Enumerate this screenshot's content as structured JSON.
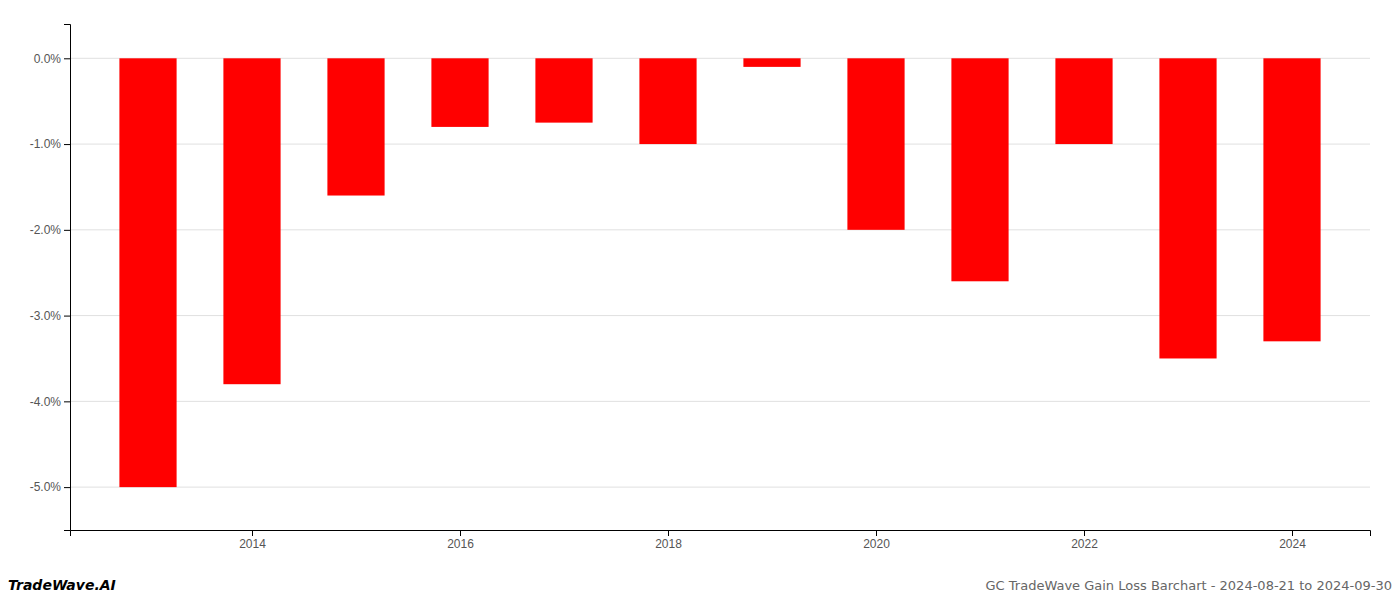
{
  "chart_data": {
    "type": "bar",
    "title": "GC TradeWave Gain Loss Barchart - 2024-08-21 to 2024-09-30",
    "annotations": [
      "TradeWave.AI"
    ],
    "x": [
      2013,
      2014,
      2015,
      2016,
      2017,
      2018,
      2019,
      2020,
      2021,
      2022,
      2023,
      2024
    ],
    "values": [
      -0.05,
      -0.038,
      -0.016,
      -0.008,
      -0.0075,
      -0.01,
      -0.001,
      -0.02,
      -0.026,
      -0.01,
      -0.035,
      -0.033
    ],
    "color": "#ff0000",
    "xlim": [
      2012.25,
      2024.75
    ],
    "xticks": [
      2014,
      2016,
      2018,
      2020,
      2022,
      2024
    ],
    "ylim": [
      -0.055,
      0.004
    ],
    "yticks": [
      {
        "value": -0.05,
        "label": "-5.0%"
      },
      {
        "value": -0.04,
        "label": "-4.0%"
      },
      {
        "value": -0.03,
        "label": "-3.0%"
      },
      {
        "value": -0.02,
        "label": "-2.0%"
      },
      {
        "value": -0.01,
        "label": "-1.0%"
      },
      {
        "value": 0,
        "label": "0.0%"
      }
    ],
    "grid": true
  }
}
